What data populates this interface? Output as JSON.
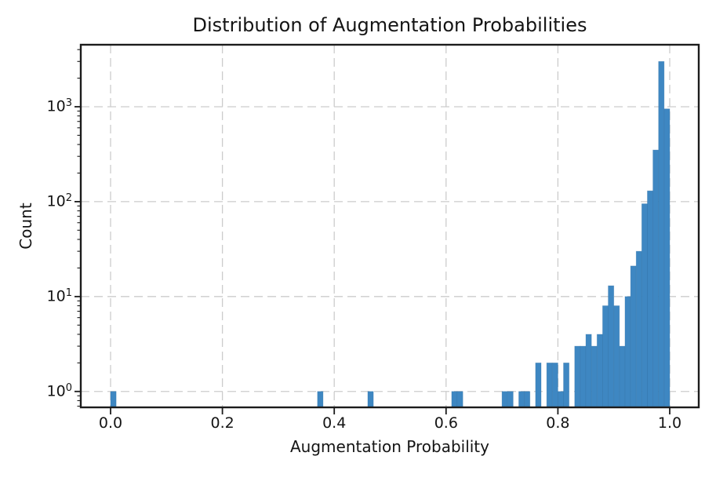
{
  "chart_data": {
    "type": "bar",
    "subtype": "histogram",
    "title": "Distribution of Augmentation Probabilities",
    "xlabel": "Augmentation Probability",
    "ylabel": "Count",
    "x_scale": "linear",
    "y_scale": "log",
    "grid": true,
    "grid_style": "dashed",
    "xlim": [
      -0.0533,
      1.0519
    ],
    "ylim": [
      0.68,
      4500
    ],
    "x_ticks": [
      {
        "value": 0.0,
        "label": "0.0"
      },
      {
        "value": 0.2,
        "label": "0.2"
      },
      {
        "value": 0.4,
        "label": "0.4"
      },
      {
        "value": 0.6,
        "label": "0.6"
      },
      {
        "value": 0.8,
        "label": "0.8"
      },
      {
        "value": 1.0,
        "label": "1.0"
      }
    ],
    "y_ticks": [
      {
        "value": 1,
        "base": "10",
        "exponent": "0"
      },
      {
        "value": 10,
        "base": "10",
        "exponent": "1"
      },
      {
        "value": 100,
        "base": "10",
        "exponent": "2"
      },
      {
        "value": 1000,
        "base": "10",
        "exponent": "3"
      }
    ],
    "bin_width": 0.01,
    "bars": [
      {
        "x": 0.0,
        "count": 1
      },
      {
        "x": 0.37,
        "count": 1
      },
      {
        "x": 0.46,
        "count": 1
      },
      {
        "x": 0.61,
        "count": 1
      },
      {
        "x": 0.62,
        "count": 1
      },
      {
        "x": 0.7,
        "count": 1
      },
      {
        "x": 0.71,
        "count": 1
      },
      {
        "x": 0.73,
        "count": 1
      },
      {
        "x": 0.74,
        "count": 1
      },
      {
        "x": 0.76,
        "count": 2
      },
      {
        "x": 0.78,
        "count": 2
      },
      {
        "x": 0.79,
        "count": 2
      },
      {
        "x": 0.8,
        "count": 1
      },
      {
        "x": 0.81,
        "count": 2
      },
      {
        "x": 0.83,
        "count": 3
      },
      {
        "x": 0.84,
        "count": 3
      },
      {
        "x": 0.85,
        "count": 4
      },
      {
        "x": 0.86,
        "count": 3
      },
      {
        "x": 0.87,
        "count": 4
      },
      {
        "x": 0.88,
        "count": 8
      },
      {
        "x": 0.89,
        "count": 13
      },
      {
        "x": 0.9,
        "count": 8
      },
      {
        "x": 0.91,
        "count": 3
      },
      {
        "x": 0.92,
        "count": 10
      },
      {
        "x": 0.93,
        "count": 21
      },
      {
        "x": 0.94,
        "count": 30
      },
      {
        "x": 0.95,
        "count": 95
      },
      {
        "x": 0.96,
        "count": 130
      },
      {
        "x": 0.97,
        "count": 350
      },
      {
        "x": 0.98,
        "count": 3000
      },
      {
        "x": 0.99,
        "count": 950
      }
    ],
    "colors": {
      "bar": "#3e87c2",
      "bar_edge": "#2d6da0",
      "grid": "#cccccc",
      "spine": "#1c1c1c",
      "text": "#141414",
      "background": "#ffffff"
    }
  }
}
